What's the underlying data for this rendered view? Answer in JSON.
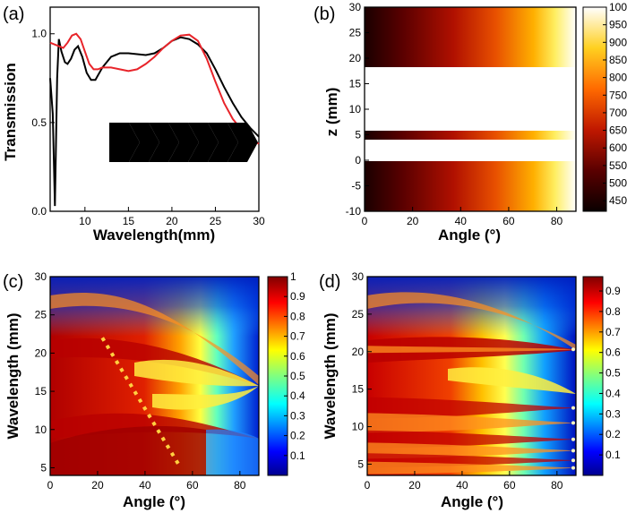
{
  "chart_data": [
    {
      "panel": "(a)",
      "type": "line",
      "xlabel": "Wavelength(mm)",
      "ylabel": "Transmission",
      "xlim": [
        6,
        30
      ],
      "ylim": [
        0,
        1.15
      ],
      "xticks": [
        "10",
        "15",
        "20",
        "25",
        "30"
      ],
      "yticks": [
        "0.0",
        "0.5",
        "1.0"
      ],
      "series": [
        {
          "color": "#000000",
          "x": [
            6,
            6.3,
            6.55,
            6.8,
            7,
            7.3,
            7.7,
            8,
            8.4,
            8.8,
            9.2,
            9.7,
            10.2,
            10.7,
            11.2,
            12,
            13,
            14,
            15,
            16,
            17,
            18,
            19,
            20,
            21,
            22,
            23,
            24,
            25,
            26,
            27,
            28,
            29,
            30
          ],
          "y": [
            0.75,
            0.55,
            0.03,
            0.75,
            0.97,
            0.9,
            0.84,
            0.83,
            0.86,
            0.91,
            0.93,
            0.87,
            0.78,
            0.74,
            0.74,
            0.81,
            0.87,
            0.89,
            0.89,
            0.885,
            0.88,
            0.89,
            0.92,
            0.96,
            0.98,
            0.97,
            0.94,
            0.89,
            0.8,
            0.7,
            0.61,
            0.53,
            0.47,
            0.42
          ]
        },
        {
          "color": "#e8242a",
          "x": [
            6,
            7,
            7.5,
            8,
            8.5,
            9,
            9.5,
            10,
            10.5,
            11,
            11.5,
            12,
            13,
            14,
            15,
            16,
            17,
            18,
            19,
            20,
            21,
            22,
            23,
            24,
            25,
            26,
            27,
            28,
            29,
            30
          ],
          "y": [
            0.95,
            0.93,
            0.92,
            0.95,
            0.99,
            1.0,
            0.97,
            0.9,
            0.83,
            0.8,
            0.8,
            0.81,
            0.81,
            0.8,
            0.79,
            0.8,
            0.83,
            0.87,
            0.92,
            0.96,
            0.99,
            0.995,
            0.96,
            0.86,
            0.73,
            0.61,
            0.52,
            0.46,
            0.41,
            0.38
          ]
        }
      ],
      "inset": "grating-schematic"
    },
    {
      "panel": "(b)",
      "type": "heatmap",
      "xlabel": "Angle (°)",
      "ylabel": "z (mm)",
      "xlim": [
        0,
        88
      ],
      "ylim": [
        -10,
        30
      ],
      "xticks": [
        "0",
        "20",
        "40",
        "60",
        "80"
      ],
      "yticks": [
        "-10",
        "-5",
        "0",
        "5",
        "10",
        "15",
        "20",
        "25",
        "30"
      ],
      "colorbar": {
        "min": 420,
        "max": 1000,
        "ticks": [
          "450",
          "500",
          "550",
          "600",
          "650",
          "700",
          "750",
          "800",
          "850",
          "900",
          "950",
          "1000"
        ]
      },
      "bands_z": [
        [
          -10,
          0
        ],
        [
          2,
          4
        ],
        [
          16,
          21
        ],
        [
          21,
          30
        ]
      ],
      "transition_angle": 63
    },
    {
      "panel": "(c)",
      "type": "heatmap",
      "xlabel": "Angle (°)",
      "ylabel": "Wavelength (mm)",
      "xlim": [
        0,
        88
      ],
      "ylim": [
        4,
        30
      ],
      "xticks": [
        "0",
        "20",
        "40",
        "60",
        "80"
      ],
      "yticks": [
        "5",
        "10",
        "15",
        "20",
        "25",
        "30"
      ],
      "colorbar": {
        "min": 0,
        "max": 1,
        "ticks": [
          "0.1",
          "0.2",
          "0.3",
          "0.4",
          "0.5",
          "0.6",
          "0.7",
          "0.8",
          "0.9",
          "1"
        ]
      },
      "focal_points": [
        [
          88,
          19
        ],
        [
          88,
          12
        ]
      ],
      "dashed_line": [
        [
          22,
          22
        ],
        [
          55,
          5
        ]
      ]
    },
    {
      "panel": "(d)",
      "type": "heatmap",
      "xlabel": "Angle (°)",
      "ylabel": "Wavelength (mm)",
      "xlim": [
        0,
        88
      ],
      "ylim": [
        3.5,
        30
      ],
      "xticks": [
        "0",
        "20",
        "40",
        "60",
        "80"
      ],
      "yticks": [
        "5",
        "10",
        "15",
        "20",
        "25",
        "30"
      ],
      "colorbar": {
        "min": 0,
        "max": 0.97,
        "ticks": [
          "0.1",
          "0.2",
          "0.3",
          "0.4",
          "0.5",
          "0.6",
          "0.7",
          "0.8",
          "0.9"
        ]
      },
      "focal_points": [
        [
          86,
          20.3
        ],
        [
          86,
          12.5
        ],
        [
          86,
          10.5
        ],
        [
          86,
          8.3
        ],
        [
          86,
          6.8
        ],
        [
          86,
          5.5
        ],
        [
          86,
          4.5
        ]
      ]
    }
  ]
}
